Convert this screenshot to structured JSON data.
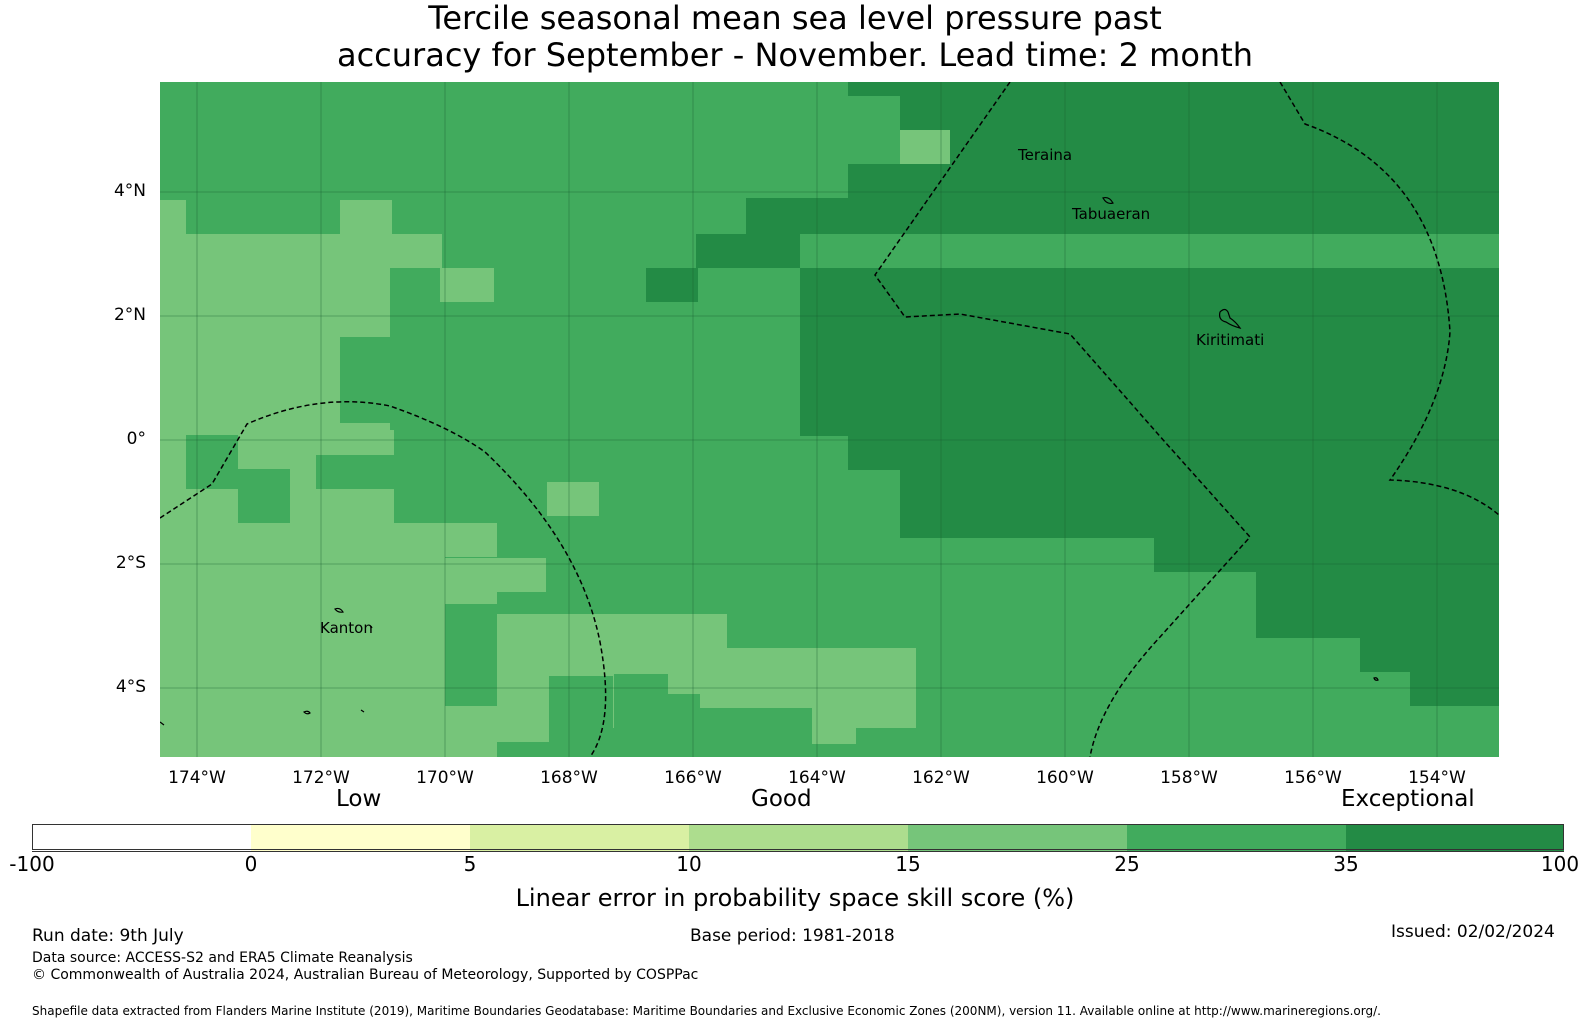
{
  "title_line1": "Tercile seasonal mean sea level pressure past",
  "title_line2": "accuracy for September - November. Lead time: 2 month",
  "map": {
    "y_ticks": [
      "4°N",
      "2°N",
      "0°",
      "2°S",
      "4°S"
    ],
    "x_ticks": [
      "174°W",
      "172°W",
      "170°W",
      "168°W",
      "166°W",
      "164°W",
      "162°W",
      "160°W",
      "158°W",
      "156°W",
      "154°W"
    ],
    "places": {
      "teraina": "Teraina",
      "tabuaeran": "Tabuaeran",
      "kiritimati": "Kiritimati",
      "kanton": "Kanton"
    },
    "colors": {
      "c15_25": "#76c57a",
      "c25_35": "#41ab5d",
      "c35_100": "#238b45"
    }
  },
  "legend": {
    "categories": [
      "Low",
      "Good",
      "Exceptional"
    ],
    "ticks": [
      "-100",
      "0",
      "5",
      "10",
      "15",
      "25",
      "35",
      "100"
    ],
    "colors": [
      "#ffffff",
      "#ffffcc",
      "#d9f0a3",
      "#addd8e",
      "#76c57a",
      "#41ab5d",
      "#238b45"
    ],
    "title": "Linear error in probability space skill score (%)"
  },
  "footer": {
    "run_date": "Run date: 9th July",
    "base_period": "Base period: 1981-2018",
    "issued": "Issued: 02/02/2024",
    "data_source": "Data source: ACCESS-S2 and ERA5 Climate Reanalysis",
    "copyright": "© Commonwealth of Australia 2024, Australian Bureau of Meteorology, Supported by COSPPac",
    "shapefile": "Shapefile data extracted from Flanders Marine Institute (2019), Maritime Boundaries Geodatabase: Maritime Boundaries and Exclusive Economic Zones (200NM), version 11. Available online at http://www.marineregions.org/."
  }
}
